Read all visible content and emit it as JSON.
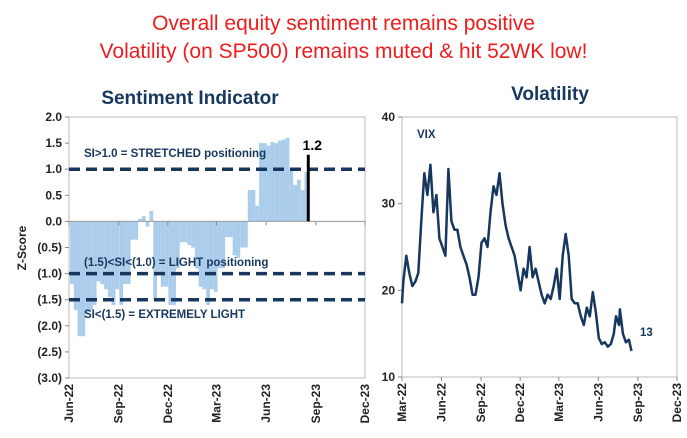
{
  "headline": {
    "line1": "Overall equity sentiment remains positive",
    "line2": "Volatility (on SP500) remains muted & hit 52WK low!"
  },
  "colors": {
    "headline": "#ee1c1c",
    "navy": "#17375e",
    "bars": "#a9cdea",
    "highlight": "#000000"
  },
  "chart_data": [
    {
      "type": "bar",
      "title": "Sentiment Indicator",
      "ylabel": "Z-Score",
      "xlabel": "",
      "ylim": [
        -3.0,
        2.0
      ],
      "yticks": [
        "2.0",
        "1.5",
        "1.0",
        "0.5",
        "0.0",
        "(0.5)",
        "(1.0)",
        "(1.5)",
        "(2.0)",
        "(2.5)",
        "(3.0)"
      ],
      "ytick_values": [
        2.0,
        1.5,
        1.0,
        0.5,
        0.0,
        -0.5,
        -1.0,
        -1.5,
        -2.0,
        -2.5,
        -3.0
      ],
      "xticks": [
        "Jun-22",
        "Sep-22",
        "Dec-22",
        "Mar-23",
        "Jun-23",
        "Sep-23",
        "Dec-23"
      ],
      "xtick_dates": [
        "2022-06-01",
        "2022-09-01",
        "2022-12-01",
        "2023-03-01",
        "2023-06-01",
        "2023-09-01",
        "2023-12-01"
      ],
      "grid": false,
      "reference_lines": [
        {
          "value": 1.0,
          "label": "SI>1.0 = STRETCHED positioning"
        },
        {
          "value": -1.0,
          "label": "(1.5)<SI<(1.0) = LIGHT positioning"
        },
        {
          "value": -1.5,
          "label": "SI<(1.5) = EXTREMELY LIGHT"
        }
      ],
      "latest": {
        "value": 1.2,
        "label": "1.2"
      },
      "series": [
        {
          "values": [
            [
              "2022-06-03",
              -1.2
            ],
            [
              "2022-06-10",
              -1.7
            ],
            [
              "2022-06-17",
              -2.2
            ],
            [
              "2022-06-24",
              -2.2
            ],
            [
              "2022-07-01",
              -1.75
            ],
            [
              "2022-07-08",
              -1.7
            ],
            [
              "2022-07-15",
              -1.6
            ],
            [
              "2022-07-22",
              -1.15
            ],
            [
              "2022-07-29",
              -1.2
            ],
            [
              "2022-08-05",
              -1.3
            ],
            [
              "2022-08-12",
              -1.45
            ],
            [
              "2022-08-19",
              -1.6
            ],
            [
              "2022-08-26",
              -1.3
            ],
            [
              "2022-09-02",
              -1.6
            ],
            [
              "2022-09-09",
              -1.2
            ],
            [
              "2022-09-16",
              -1.2
            ],
            [
              "2022-09-23",
              -0.35
            ],
            [
              "2022-09-30",
              -0.35
            ],
            [
              "2022-10-07",
              0.05
            ],
            [
              "2022-10-14",
              0.1
            ],
            [
              "2022-10-21",
              -0.1
            ],
            [
              "2022-10-28",
              0.2
            ],
            [
              "2022-11-04",
              -1.5
            ],
            [
              "2022-11-11",
              -1.0
            ],
            [
              "2022-11-18",
              -1.25
            ],
            [
              "2022-11-25",
              -1.25
            ],
            [
              "2022-12-02",
              -1.6
            ],
            [
              "2022-12-09",
              -1.6
            ],
            [
              "2022-12-16",
              -0.9
            ],
            [
              "2022-12-23",
              -0.4
            ],
            [
              "2022-12-30",
              -0.4
            ],
            [
              "2023-01-06",
              -0.45
            ],
            [
              "2023-01-13",
              -0.5
            ],
            [
              "2023-01-20",
              -0.9
            ],
            [
              "2023-01-27",
              -1.25
            ],
            [
              "2023-02-03",
              -1.3
            ],
            [
              "2023-02-10",
              -1.6
            ],
            [
              "2023-02-17",
              -1.3
            ],
            [
              "2023-02-24",
              -1.35
            ],
            [
              "2023-03-03",
              -0.9
            ],
            [
              "2023-03-10",
              -0.9
            ],
            [
              "2023-03-17",
              -0.3
            ],
            [
              "2023-03-24",
              -0.3
            ],
            [
              "2023-03-31",
              -0.65
            ],
            [
              "2023-04-07",
              -0.7
            ],
            [
              "2023-04-14",
              -0.5
            ],
            [
              "2023-04-21",
              -0.5
            ],
            [
              "2023-04-28",
              0.6
            ],
            [
              "2023-05-05",
              0.6
            ],
            [
              "2023-05-12",
              0.3
            ],
            [
              "2023-05-19",
              1.5
            ],
            [
              "2023-05-26",
              1.5
            ],
            [
              "2023-06-02",
              1.45
            ],
            [
              "2023-06-09",
              1.52
            ],
            [
              "2023-06-16",
              1.5
            ],
            [
              "2023-06-23",
              1.55
            ],
            [
              "2023-06-30",
              1.57
            ],
            [
              "2023-07-07",
              1.6
            ],
            [
              "2023-07-14",
              1.0
            ],
            [
              "2023-07-21",
              0.7
            ],
            [
              "2023-07-28",
              0.8
            ],
            [
              "2023-08-04",
              0.6
            ],
            [
              "2023-08-11",
              0.95
            ],
            [
              "2023-08-18",
              1.2
            ]
          ]
        }
      ]
    },
    {
      "type": "line",
      "title": "Volatility",
      "xlabel": "",
      "ylabel": "",
      "ylim": [
        10,
        40
      ],
      "yticks": [
        "40",
        "30",
        "20",
        "10"
      ],
      "ytick_values": [
        40,
        30,
        20,
        10
      ],
      "xticks": [
        "Mar-22",
        "Jun-22",
        "Sep-22",
        "Dec-22",
        "Mar-23",
        "Jun-23",
        "Sep-23",
        "Dec-23"
      ],
      "xtick_dates": [
        "2022-03-01",
        "2022-06-01",
        "2022-09-01",
        "2022-12-01",
        "2023-03-01",
        "2023-06-01",
        "2023-09-01",
        "2023-12-01"
      ],
      "grid": false,
      "series_label": "VIX",
      "latest": {
        "value": 13,
        "label": "13"
      },
      "series": [
        {
          "name": "VIX",
          "values": [
            [
              "2022-03-01",
              18.5
            ],
            [
              "2022-03-04",
              21
            ],
            [
              "2022-03-11",
              24
            ],
            [
              "2022-03-18",
              22
            ],
            [
              "2022-03-25",
              20.5
            ],
            [
              "2022-04-01",
              21
            ],
            [
              "2022-04-08",
              22
            ],
            [
              "2022-04-15",
              28
            ],
            [
              "2022-04-22",
              33.5
            ],
            [
              "2022-04-29",
              31
            ],
            [
              "2022-05-06",
              34.5
            ],
            [
              "2022-05-13",
              29
            ],
            [
              "2022-05-20",
              31
            ],
            [
              "2022-05-27",
              26
            ],
            [
              "2022-06-03",
              25
            ],
            [
              "2022-06-10",
              24
            ],
            [
              "2022-06-17",
              34
            ],
            [
              "2022-06-24",
              28
            ],
            [
              "2022-07-01",
              27
            ],
            [
              "2022-07-08",
              27
            ],
            [
              "2022-07-15",
              25
            ],
            [
              "2022-07-22",
              24
            ],
            [
              "2022-07-29",
              23
            ],
            [
              "2022-08-05",
              21.5
            ],
            [
              "2022-08-12",
              19.5
            ],
            [
              "2022-08-19",
              19.5
            ],
            [
              "2022-08-26",
              21.5
            ],
            [
              "2022-09-02",
              25.5
            ],
            [
              "2022-09-09",
              26
            ],
            [
              "2022-09-16",
              25
            ],
            [
              "2022-09-23",
              29
            ],
            [
              "2022-09-30",
              32
            ],
            [
              "2022-10-07",
              31
            ],
            [
              "2022-10-14",
              33.5
            ],
            [
              "2022-10-21",
              30
            ],
            [
              "2022-10-28",
              27.5
            ],
            [
              "2022-11-04",
              26
            ],
            [
              "2022-11-11",
              25
            ],
            [
              "2022-11-18",
              24
            ],
            [
              "2022-11-25",
              22
            ],
            [
              "2022-12-02",
              20
            ],
            [
              "2022-12-09",
              22.5
            ],
            [
              "2022-12-16",
              21.5
            ],
            [
              "2022-12-23",
              25
            ],
            [
              "2022-12-30",
              21.5
            ],
            [
              "2023-01-06",
              22.5
            ],
            [
              "2023-01-13",
              21
            ],
            [
              "2023-01-20",
              19.5
            ],
            [
              "2023-01-27",
              18.5
            ],
            [
              "2023-02-03",
              19.5
            ],
            [
              "2023-02-10",
              19
            ],
            [
              "2023-02-17",
              20.5
            ],
            [
              "2023-02-24",
              22.5
            ],
            [
              "2023-03-03",
              19
            ],
            [
              "2023-03-10",
              24
            ],
            [
              "2023-03-17",
              26.5
            ],
            [
              "2023-03-24",
              24
            ],
            [
              "2023-03-31",
              19
            ],
            [
              "2023-04-07",
              18.5
            ],
            [
              "2023-04-14",
              18.5
            ],
            [
              "2023-04-21",
              17
            ],
            [
              "2023-04-28",
              16
            ],
            [
              "2023-05-05",
              18
            ],
            [
              "2023-05-12",
              17
            ],
            [
              "2023-05-19",
              19.8
            ],
            [
              "2023-05-26",
              17.5
            ],
            [
              "2023-06-02",
              14.5
            ],
            [
              "2023-06-09",
              13.8
            ],
            [
              "2023-06-16",
              14
            ],
            [
              "2023-06-23",
              13.5
            ],
            [
              "2023-06-30",
              13.8
            ],
            [
              "2023-07-07",
              15
            ],
            [
              "2023-07-12",
              17
            ],
            [
              "2023-07-19",
              16
            ],
            [
              "2023-07-21",
              17.8
            ],
            [
              "2023-07-28",
              15
            ],
            [
              "2023-08-04",
              14
            ],
            [
              "2023-08-11",
              14.3
            ],
            [
              "2023-08-17",
              13
            ]
          ]
        }
      ]
    }
  ]
}
